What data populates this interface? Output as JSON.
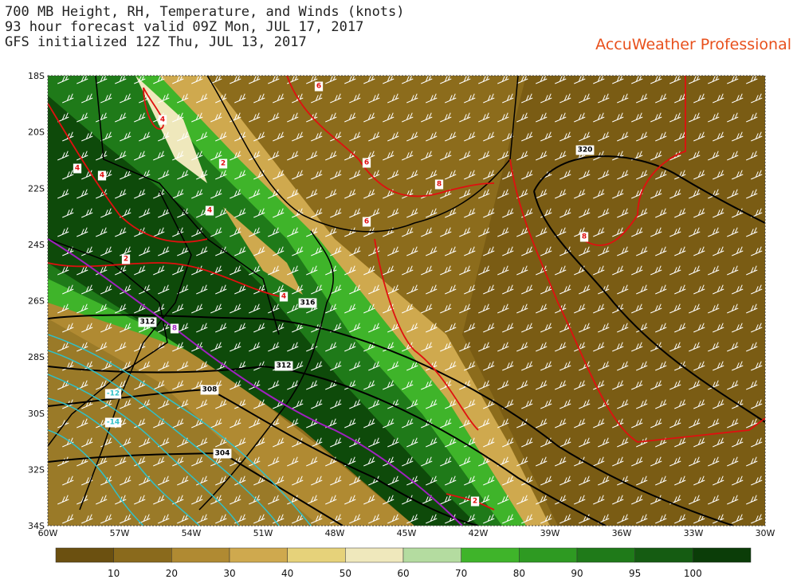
{
  "header": {
    "lines": [
      "700 MB Height, RH, Temperature, and Winds (knots)",
      "93 hour forecast valid 09Z Mon, JUL 17, 2017",
      "GFS initialized 12Z Thu, JUL 13, 2017"
    ],
    "brand": "AccuWeather Professional"
  },
  "map": {
    "latitude_labels": [
      "18S",
      "20S",
      "22S",
      "24S",
      "26S",
      "28S",
      "30S",
      "32S",
      "34S"
    ],
    "longitude_labels": [
      "60W",
      "57W",
      "54W",
      "51W",
      "48W",
      "45W",
      "42W",
      "39W",
      "36W",
      "33W",
      "30W"
    ],
    "contour_labels": [
      "6",
      "4",
      "4",
      "4",
      "2",
      "4",
      "6",
      "8",
      "6",
      "320",
      "8",
      "2",
      "316",
      "4",
      "312",
      "8",
      "312",
      "308",
      "-12",
      "-14",
      "304",
      "2"
    ]
  },
  "colorbar": {
    "labels": [
      "10",
      "20",
      "30",
      "40",
      "50",
      "60",
      "70",
      "80",
      "90",
      "95",
      "100"
    ]
  }
}
